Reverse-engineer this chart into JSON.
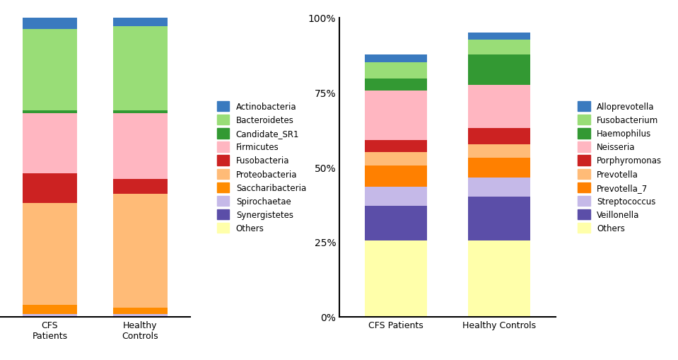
{
  "left_chart": {
    "categories": [
      "CFS\nPatients",
      "Healthy\nControls"
    ],
    "segments": [
      {
        "label": "Others",
        "color": "#FFFFAA",
        "values": [
          0.0,
          0.0
        ]
      },
      {
        "label": "Synergistetes",
        "color": "#5B4EA8",
        "values": [
          0.0,
          0.0
        ]
      },
      {
        "label": "Spirochaetae",
        "color": "#C5B9E8",
        "values": [
          0.01,
          0.01
        ]
      },
      {
        "label": "Saccharibacteria",
        "color": "#FF8C00",
        "values": [
          0.03,
          0.02
        ]
      },
      {
        "label": "Proteobacteria",
        "color": "#FFBB77",
        "values": [
          0.34,
          0.38
        ]
      },
      {
        "label": "Fusobacteria",
        "color": "#CC2222",
        "values": [
          0.1,
          0.05
        ]
      },
      {
        "label": "Firmicutes",
        "color": "#FFB6C1",
        "values": [
          0.2,
          0.22
        ]
      },
      {
        "label": "Candidate_SR1",
        "color": "#339933",
        "values": [
          0.01,
          0.01
        ]
      },
      {
        "label": "Bacteroidetes",
        "color": "#99DD77",
        "values": [
          0.27,
          0.28
        ]
      },
      {
        "label": "Actinobacteria",
        "color": "#3A7ABF",
        "values": [
          0.04,
          0.03
        ]
      }
    ],
    "legend_labels": [
      "Actinobacteria",
      "Bacteroidetes",
      "Candidate_SR1",
      "Firmicutes",
      "Fusobacteria",
      "Proteobacteria",
      "Saccharibacteria",
      "Spirochaetae",
      "Synergistetes",
      "Others"
    ],
    "legend_colors": [
      "#3A7ABF",
      "#99DD77",
      "#339933",
      "#FFB6C1",
      "#CC2222",
      "#FFBB77",
      "#FF8C00",
      "#C5B9E8",
      "#5B4EA8",
      "#FFFFAA"
    ]
  },
  "right_chart": {
    "categories": [
      "CFS Patients",
      "Healthy Controls"
    ],
    "yticks": [
      0,
      0.25,
      0.5,
      0.75,
      1.0
    ],
    "ytick_labels": [
      "0%",
      "25%",
      "50%",
      "75%",
      "100%"
    ],
    "segments": [
      {
        "label": "Others",
        "color": "#FFFFAA",
        "values": [
          0.255,
          0.255
        ]
      },
      {
        "label": "Veillonella",
        "color": "#5B4EA8",
        "values": [
          0.115,
          0.145
        ]
      },
      {
        "label": "Streptococcus",
        "color": "#C5B9E8",
        "values": [
          0.065,
          0.065
        ]
      },
      {
        "label": "Prevotella_7",
        "color": "#FF8000",
        "values": [
          0.07,
          0.065
        ]
      },
      {
        "label": "Prevotella",
        "color": "#FFBB77",
        "values": [
          0.045,
          0.045
        ]
      },
      {
        "label": "Porphyromonas",
        "color": "#CC2222",
        "values": [
          0.04,
          0.055
        ]
      },
      {
        "label": "Neisseria",
        "color": "#FFB6C1",
        "values": [
          0.165,
          0.145
        ]
      },
      {
        "label": "Haemophilus",
        "color": "#339933",
        "values": [
          0.04,
          0.1
        ]
      },
      {
        "label": "Fusobacterium",
        "color": "#99DD77",
        "values": [
          0.055,
          0.05
        ]
      },
      {
        "label": "Alloprevotella",
        "color": "#3A7ABF",
        "values": [
          0.025,
          0.025
        ]
      }
    ],
    "legend_labels": [
      "Alloprevotella",
      "Fusobacterium",
      "Haemophilus",
      "Neisseria",
      "Porphyromonas",
      "Prevotella",
      "Prevotella_7",
      "Streptococcus",
      "Veillonella",
      "Others"
    ],
    "legend_colors": [
      "#3A7ABF",
      "#99DD77",
      "#339933",
      "#FFB6C1",
      "#CC2222",
      "#FFBB77",
      "#FF8000",
      "#C5B9E8",
      "#5B4EA8",
      "#FFFFAA"
    ]
  },
  "background_color": "#FFFFFF",
  "bar_width": 0.6,
  "left_xlim": [
    -0.8,
    2.5
  ],
  "right_xlim": [
    -0.5,
    1.5
  ]
}
